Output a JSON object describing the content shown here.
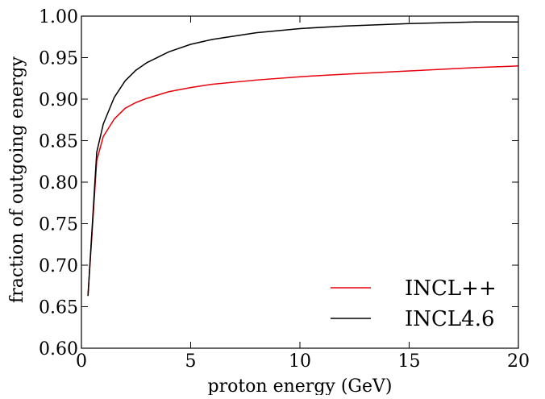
{
  "chart_data": {
    "type": "line",
    "title": "",
    "xlabel": "proton energy (GeV)",
    "ylabel": "fraction of outgoing energy",
    "xlim": [
      0,
      20
    ],
    "ylim": [
      0.6,
      1.0
    ],
    "xticks": [
      0,
      5,
      10,
      15,
      20
    ],
    "xtick_labels": [
      "0",
      "5",
      "10",
      "15",
      "20"
    ],
    "yticks": [
      0.6,
      0.65,
      0.7,
      0.75,
      0.8,
      0.85,
      0.9,
      0.95,
      1.0
    ],
    "ytick_labels": [
      "0.60",
      "0.65",
      "0.70",
      "0.75",
      "0.80",
      "0.85",
      "0.90",
      "0.95",
      "1.00"
    ],
    "grid": false,
    "legend_position": "lower-right",
    "series": [
      {
        "name": "INCL++",
        "color": "#e8000b",
        "x": [
          0.3,
          0.7,
          1.0,
          1.5,
          2.0,
          2.5,
          3.0,
          4.0,
          5.0,
          6.0,
          8.0,
          10.0,
          12.0,
          15.0,
          18.0,
          20.0
        ],
        "y": [
          0.663,
          0.826,
          0.855,
          0.876,
          0.889,
          0.896,
          0.901,
          0.909,
          0.914,
          0.918,
          0.923,
          0.927,
          0.93,
          0.934,
          0.938,
          0.94
        ]
      },
      {
        "name": "INCL4.6",
        "color": "#000000",
        "x": [
          0.3,
          0.7,
          1.0,
          1.5,
          2.0,
          2.5,
          3.0,
          4.0,
          5.0,
          6.0,
          8.0,
          10.0,
          12.0,
          15.0,
          18.0,
          20.0
        ],
        "y": [
          0.663,
          0.836,
          0.87,
          0.902,
          0.922,
          0.935,
          0.944,
          0.957,
          0.966,
          0.972,
          0.98,
          0.985,
          0.988,
          0.991,
          0.993,
          0.993
        ]
      }
    ]
  }
}
